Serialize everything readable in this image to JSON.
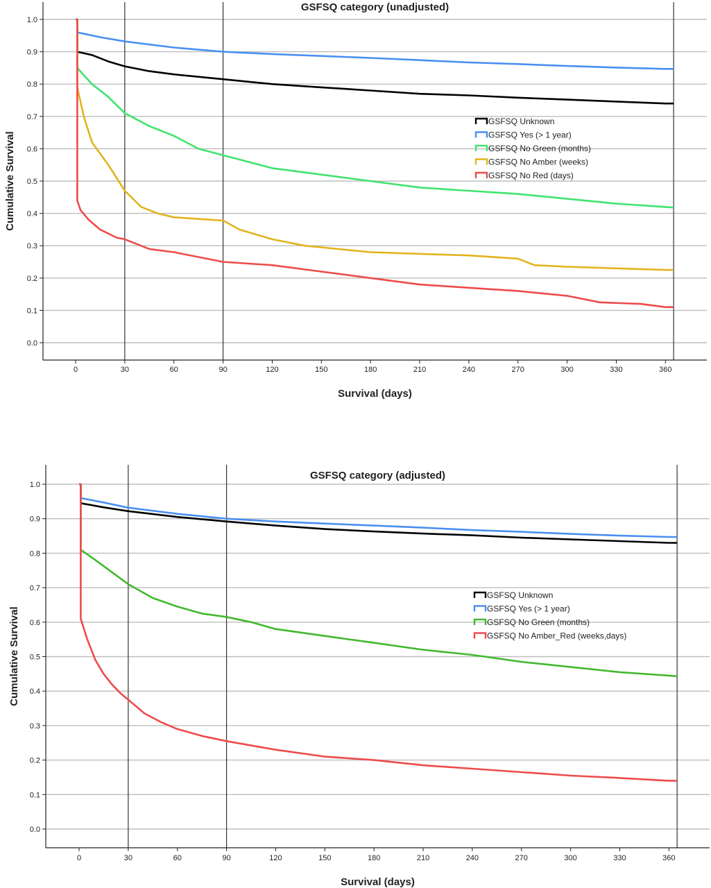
{
  "chart_data": [
    {
      "type": "line",
      "title": "GSFSQ category (unadjusted)",
      "xlabel": "Survival (days)",
      "ylabel": "Cumulative  Survival",
      "xlim": [
        -15,
        367
      ],
      "ylim": [
        -0.05,
        1.06
      ],
      "x_ticks": [
        "0",
        "30",
        "60",
        "90",
        "120",
        "150",
        "180",
        "210",
        "240",
        "270",
        "300",
        "330",
        "360"
      ],
      "y_ticks": [
        "0.0",
        "0.1",
        "0.2",
        "0.3",
        "0.4",
        "0.5",
        "0.6",
        "0.7",
        "0.8",
        "0.9",
        "1.0"
      ],
      "vlines": [
        30,
        90,
        365
      ],
      "grid": "horizontal",
      "legend_position": "right-middle",
      "series": [
        {
          "name": "GSFSQ Unknown",
          "color": "#000000",
          "points": [
            [
              0,
              1.0
            ],
            [
              1,
              1.0
            ],
            [
              1,
              0.9
            ],
            [
              10,
              0.89
            ],
            [
              20,
              0.87
            ],
            [
              30,
              0.855
            ],
            [
              45,
              0.84
            ],
            [
              60,
              0.83
            ],
            [
              90,
              0.815
            ],
            [
              120,
              0.8
            ],
            [
              150,
              0.79
            ],
            [
              180,
              0.78
            ],
            [
              210,
              0.77
            ],
            [
              240,
              0.765
            ],
            [
              270,
              0.758
            ],
            [
              300,
              0.752
            ],
            [
              330,
              0.746
            ],
            [
              360,
              0.74
            ],
            [
              365,
              0.74
            ]
          ]
        },
        {
          "name": "GSFSQ Yes (> 1 year)",
          "color": "#4a8ff0",
          "points": [
            [
              0,
              1.0
            ],
            [
              1,
              1.0
            ],
            [
              1,
              0.96
            ],
            [
              15,
              0.945
            ],
            [
              30,
              0.932
            ],
            [
              60,
              0.913
            ],
            [
              90,
              0.9
            ],
            [
              120,
              0.893
            ],
            [
              150,
              0.887
            ],
            [
              180,
              0.881
            ],
            [
              210,
              0.874
            ],
            [
              240,
              0.867
            ],
            [
              270,
              0.862
            ],
            [
              300,
              0.856
            ],
            [
              330,
              0.851
            ],
            [
              360,
              0.847
            ],
            [
              365,
              0.847
            ]
          ]
        },
        {
          "name": "GSFSQ No Green (months)",
          "color": "#3fe46e",
          "points": [
            [
              0,
              1.0
            ],
            [
              1,
              1.0
            ],
            [
              1,
              0.85
            ],
            [
              10,
              0.8
            ],
            [
              20,
              0.76
            ],
            [
              30,
              0.71
            ],
            [
              45,
              0.67
            ],
            [
              60,
              0.64
            ],
            [
              75,
              0.6
            ],
            [
              90,
              0.58
            ],
            [
              120,
              0.54
            ],
            [
              150,
              0.52
            ],
            [
              180,
              0.5
            ],
            [
              210,
              0.48
            ],
            [
              240,
              0.47
            ],
            [
              270,
              0.46
            ],
            [
              300,
              0.445
            ],
            [
              330,
              0.43
            ],
            [
              360,
              0.42
            ],
            [
              365,
              0.418
            ]
          ]
        },
        {
          "name": "GSFSQ No Amber (weeks)",
          "color": "#e1b41c",
          "points": [
            [
              0,
              1.0
            ],
            [
              1,
              1.0
            ],
            [
              1,
              0.79
            ],
            [
              5,
              0.7
            ],
            [
              10,
              0.62
            ],
            [
              20,
              0.55
            ],
            [
              30,
              0.47
            ],
            [
              40,
              0.42
            ],
            [
              50,
              0.4
            ],
            [
              60,
              0.388
            ],
            [
              90,
              0.378
            ],
            [
              100,
              0.35
            ],
            [
              120,
              0.32
            ],
            [
              140,
              0.3
            ],
            [
              150,
              0.295
            ],
            [
              180,
              0.28
            ],
            [
              210,
              0.275
            ],
            [
              240,
              0.27
            ],
            [
              270,
              0.26
            ],
            [
              280,
              0.24
            ],
            [
              300,
              0.235
            ],
            [
              330,
              0.23
            ],
            [
              360,
              0.225
            ],
            [
              365,
              0.225
            ]
          ]
        },
        {
          "name": "GSFSQ No Red (days)",
          "color": "#ee4b4b",
          "points": [
            [
              0,
              1.0
            ],
            [
              1,
              1.0
            ],
            [
              1,
              0.44
            ],
            [
              3,
              0.41
            ],
            [
              8,
              0.38
            ],
            [
              15,
              0.35
            ],
            [
              25,
              0.325
            ],
            [
              30,
              0.32
            ],
            [
              45,
              0.29
            ],
            [
              60,
              0.28
            ],
            [
              75,
              0.265
            ],
            [
              90,
              0.25
            ],
            [
              120,
              0.24
            ],
            [
              150,
              0.22
            ],
            [
              180,
              0.2
            ],
            [
              210,
              0.18
            ],
            [
              240,
              0.17
            ],
            [
              270,
              0.16
            ],
            [
              300,
              0.145
            ],
            [
              320,
              0.125
            ],
            [
              345,
              0.12
            ],
            [
              360,
              0.11
            ],
            [
              365,
              0.11
            ]
          ]
        }
      ]
    },
    {
      "type": "line",
      "title": "GSFSQ category (adjusted)",
      "xlabel": "Survival (days)",
      "ylabel": "Cumulative  Survival",
      "xlim": [
        -15,
        367
      ],
      "ylim": [
        -0.05,
        1.06
      ],
      "x_ticks": [
        "0",
        "30",
        "60",
        "90",
        "120",
        "150",
        "180",
        "210",
        "240",
        "270",
        "300",
        "330",
        "360"
      ],
      "y_ticks": [
        "0.0",
        "0.1",
        "0.2",
        "0.3",
        "0.4",
        "0.5",
        "0.6",
        "0.7",
        "0.8",
        "0.9",
        "1.0"
      ],
      "vlines": [
        30,
        90,
        365
      ],
      "grid": "horizontal",
      "legend_position": "right-middle",
      "series": [
        {
          "name": "GSFSQ Unknown",
          "color": "#000000",
          "points": [
            [
              0,
              1.0
            ],
            [
              1,
              1.0
            ],
            [
              1,
              0.945
            ],
            [
              15,
              0.933
            ],
            [
              30,
              0.922
            ],
            [
              60,
              0.905
            ],
            [
              90,
              0.892
            ],
            [
              120,
              0.88
            ],
            [
              150,
              0.87
            ],
            [
              180,
              0.863
            ],
            [
              210,
              0.857
            ],
            [
              240,
              0.852
            ],
            [
              270,
              0.845
            ],
            [
              300,
              0.84
            ],
            [
              330,
              0.835
            ],
            [
              360,
              0.83
            ],
            [
              365,
              0.83
            ]
          ]
        },
        {
          "name": "GSFSQ Yes (> 1 year)",
          "color": "#4a8ff0",
          "points": [
            [
              0,
              1.0
            ],
            [
              1,
              1.0
            ],
            [
              1,
              0.96
            ],
            [
              15,
              0.947
            ],
            [
              30,
              0.932
            ],
            [
              60,
              0.914
            ],
            [
              90,
              0.9
            ],
            [
              120,
              0.892
            ],
            [
              150,
              0.886
            ],
            [
              180,
              0.88
            ],
            [
              210,
              0.874
            ],
            [
              240,
              0.867
            ],
            [
              270,
              0.862
            ],
            [
              300,
              0.856
            ],
            [
              330,
              0.851
            ],
            [
              360,
              0.847
            ],
            [
              365,
              0.847
            ]
          ]
        },
        {
          "name": "GSFSQ No Green (months)",
          "color": "#42b82e",
          "points": [
            [
              0,
              1.0
            ],
            [
              1,
              1.0
            ],
            [
              1,
              0.81
            ],
            [
              10,
              0.78
            ],
            [
              20,
              0.745
            ],
            [
              30,
              0.71
            ],
            [
              45,
              0.67
            ],
            [
              60,
              0.645
            ],
            [
              75,
              0.625
            ],
            [
              90,
              0.615
            ],
            [
              105,
              0.6
            ],
            [
              120,
              0.58
            ],
            [
              150,
              0.56
            ],
            [
              180,
              0.54
            ],
            [
              210,
              0.52
            ],
            [
              240,
              0.505
            ],
            [
              270,
              0.485
            ],
            [
              300,
              0.47
            ],
            [
              330,
              0.455
            ],
            [
              360,
              0.445
            ],
            [
              365,
              0.443
            ]
          ]
        },
        {
          "name": "GSFSQ No Amber_Red (weeks,days)",
          "color": "#ee4b4b",
          "points": [
            [
              0,
              1.0
            ],
            [
              1,
              1.0
            ],
            [
              1,
              0.61
            ],
            [
              5,
              0.55
            ],
            [
              10,
              0.49
            ],
            [
              15,
              0.45
            ],
            [
              20,
              0.42
            ],
            [
              25,
              0.395
            ],
            [
              30,
              0.375
            ],
            [
              40,
              0.335
            ],
            [
              50,
              0.31
            ],
            [
              60,
              0.29
            ],
            [
              75,
              0.27
            ],
            [
              90,
              0.255
            ],
            [
              120,
              0.23
            ],
            [
              150,
              0.21
            ],
            [
              180,
              0.2
            ],
            [
              210,
              0.185
            ],
            [
              240,
              0.175
            ],
            [
              270,
              0.165
            ],
            [
              300,
              0.155
            ],
            [
              330,
              0.148
            ],
            [
              360,
              0.14
            ],
            [
              365,
              0.14
            ]
          ]
        }
      ]
    }
  ]
}
